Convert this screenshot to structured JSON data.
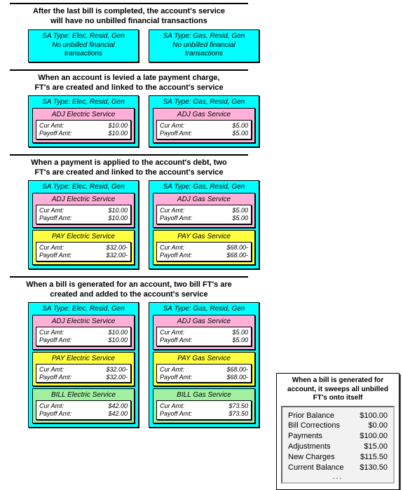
{
  "sections": [
    {
      "title": "After the last bill is completed, the account's service\nwill have no unbilled financial transactions",
      "left": {
        "header": "SA Type: Elec, Resid, Gen",
        "note": "No unbilled financial\ntransactions",
        "fts": []
      },
      "right": {
        "header": "SA Type: Gas, Resid, Gen",
        "note": "No unbilled financial\ntransactions",
        "fts": []
      }
    },
    {
      "title": "When an account is levied a late payment charge,\nFT's are created and linked to the account's service",
      "left": {
        "header": "SA Type: Elec, Resid, Gen",
        "fts": [
          {
            "color": "pink",
            "title": "ADJ Electric Service",
            "cur": "$10.00",
            "pay": "$10.00"
          }
        ]
      },
      "right": {
        "header": "SA Type: Gas, Resid, Gen",
        "fts": [
          {
            "color": "pink",
            "title": "ADJ Gas Service",
            "cur": "$5.00",
            "pay": "$5.00"
          }
        ]
      }
    },
    {
      "title": "When a payment is applied to the account's debt, two\nFT's are created and linked to the account's service",
      "left": {
        "header": "SA Type: Elec, Resid, Gen",
        "fts": [
          {
            "color": "pink",
            "title": "ADJ Electric Service",
            "cur": "$10.00",
            "pay": "$10.00"
          },
          {
            "color": "yellow",
            "title": "PAY Electric Service",
            "cur": "$32.00-",
            "pay": "$32.00-"
          }
        ]
      },
      "right": {
        "header": "SA Type: Gas, Resid, Gen",
        "fts": [
          {
            "color": "pink",
            "title": "ADJ Gas Service",
            "cur": "$5.00",
            "pay": "$5.00"
          },
          {
            "color": "yellow",
            "title": "PAY Gas Service",
            "cur": "$68.00-",
            "pay": "$68.00-"
          }
        ]
      }
    },
    {
      "title": "When a bill is generated for an account, two bill FT's are\ncreated and added to the account's service",
      "left": {
        "header": "SA Type: Elec, Resid, Gen",
        "fts": [
          {
            "color": "pink",
            "title": "ADJ Electric Service",
            "cur": "$10.00",
            "pay": "$10.00"
          },
          {
            "color": "yellow",
            "title": "PAY Electric Service",
            "cur": "$32.00-",
            "pay": "$32.00-"
          },
          {
            "color": "green",
            "title": "BILL Electric Service",
            "cur": "$42.00",
            "pay": "$42.00"
          }
        ]
      },
      "right": {
        "header": "SA Type: Gas, Resid, Gen",
        "fts": [
          {
            "color": "pink",
            "title": "ADJ Gas Service",
            "cur": "$5.00",
            "pay": "$5.00"
          },
          {
            "color": "yellow",
            "title": "PAY Gas Service",
            "cur": "$68.00-",
            "pay": "$68.00-"
          },
          {
            "color": "green",
            "title": "BILL Gas Service",
            "cur": "$73.50",
            "pay": "$73.50"
          }
        ]
      }
    }
  ],
  "labels": {
    "cur": "Cur Amt:",
    "pay": "Payoff Amt:"
  },
  "bill_summary": {
    "title": "When a bill is generated for account, it sweeps all unbilled FT's onto itself",
    "rows": [
      {
        "label": "Prior Balance",
        "value": "$100.00"
      },
      {
        "label": "Bill Corrections",
        "value": "$0.00"
      },
      {
        "label": "Payments",
        "value": "$100.00"
      },
      {
        "label": "Adjustments",
        "value": "$15.00"
      },
      {
        "label": "New Charges",
        "value": "$115.50"
      },
      {
        "label": "Current Balance",
        "value": "$130.50"
      }
    ],
    "ellipsis": "..."
  },
  "colors": {
    "cyan": "#00ffff",
    "pink": "#ffb0d8",
    "yellow": "#ffff40",
    "green": "#a0f0a0"
  }
}
